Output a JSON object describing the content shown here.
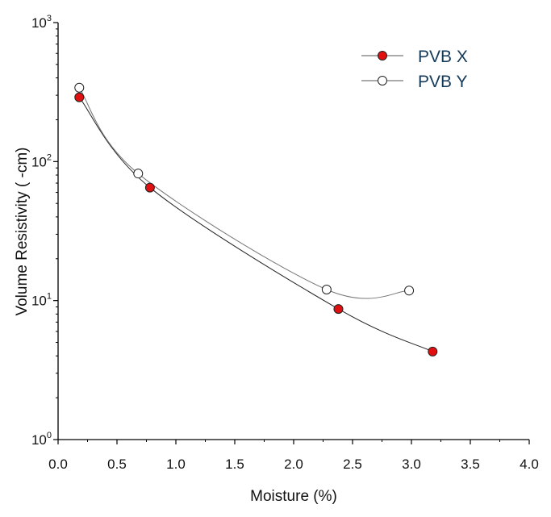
{
  "chart_data": {
    "type": "line",
    "xlabel": "Moisture (%)",
    "ylabel": "Volume Resistivity (  -cm)",
    "xlim": [
      0,
      4
    ],
    "ylim": [
      1,
      1000
    ],
    "yscale": "log",
    "x_ticks": [
      "0.0",
      "0.5",
      "1.0",
      "1.5",
      "2.0",
      "2.5",
      "3.0",
      "3.5",
      "4.0"
    ],
    "y_ticks": [
      {
        "base": "10",
        "exp": "0"
      },
      {
        "base": "10",
        "exp": "1"
      },
      {
        "base": "10",
        "exp": "2"
      },
      {
        "base": "10",
        "exp": "3"
      }
    ],
    "grid": false,
    "legend_position": "top-right",
    "series": [
      {
        "name": "PVB X",
        "marker": "filled-circle",
        "color": "#e01010",
        "x": [
          0.18,
          0.78,
          2.38,
          3.18
        ],
        "y": [
          290,
          65,
          8.7,
          4.3
        ]
      },
      {
        "name": "PVB Y",
        "marker": "open-circle",
        "color": "#ffffff",
        "x": [
          0.18,
          0.68,
          2.28,
          2.98
        ],
        "y": [
          340,
          82,
          12,
          11.8
        ]
      }
    ]
  }
}
